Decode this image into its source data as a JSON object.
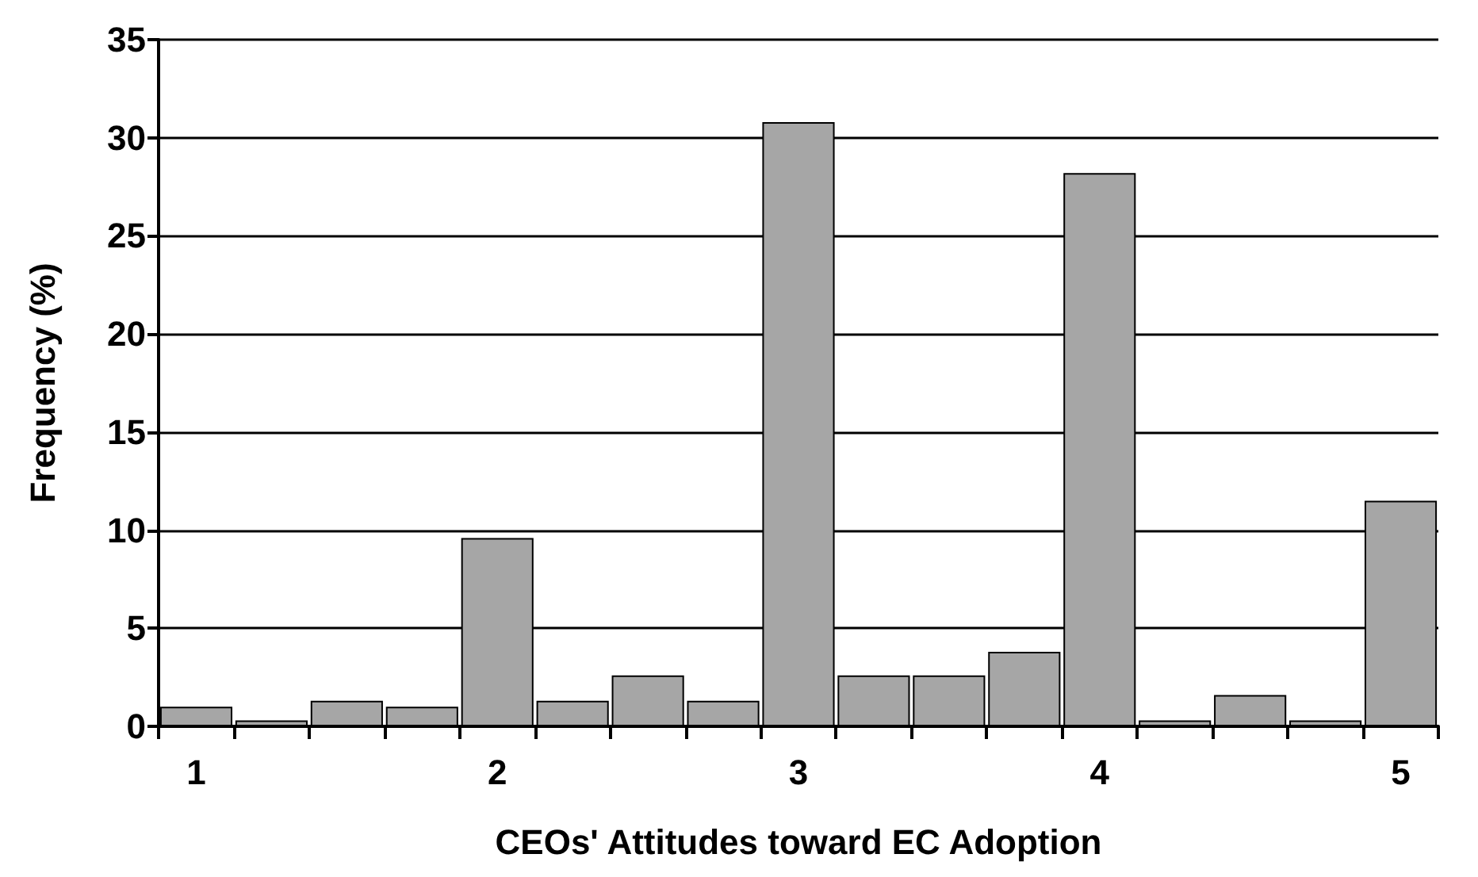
{
  "chart_data": {
    "type": "bar",
    "xlabel": "CEOs' Attitudes toward EC Adoption",
    "ylabel": "Frequency (%)",
    "categories": [
      "1",
      null,
      null,
      null,
      "2",
      null,
      null,
      null,
      "3",
      null,
      null,
      null,
      "4",
      null,
      null,
      null,
      "5"
    ],
    "values": [
      1.0,
      0.3,
      1.3,
      1.0,
      9.6,
      1.3,
      2.6,
      1.3,
      30.8,
      2.6,
      2.6,
      3.8,
      28.2,
      0.3,
      1.6,
      0.3,
      11.5
    ],
    "color": "#a6a6a6",
    "ylim": [
      0,
      35
    ],
    "yticks": [
      0,
      5,
      10,
      15,
      20,
      25,
      30,
      35
    ],
    "grid": "y"
  }
}
